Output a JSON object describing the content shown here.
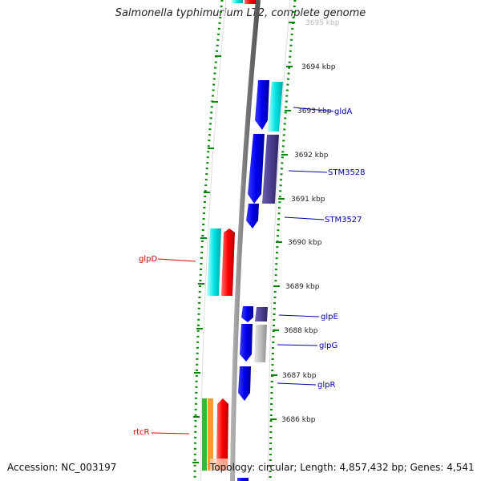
{
  "header": {
    "title": "Salmonella typhimurium LT2, complete genome"
  },
  "footer": {
    "accession": "Accession: NC_003197",
    "stats": "Topology: circular; Length: 4,857,432 bp; Genes: 4,541"
  },
  "axis": {
    "ticks": [
      {
        "label": "3695 kbp",
        "faded": true
      },
      {
        "label": "3694 kbp"
      },
      {
        "label": "3693 kbp"
      },
      {
        "label": "3692 kbp"
      },
      {
        "label": "3691 kbp"
      },
      {
        "label": "3690 kbp"
      },
      {
        "label": "3689 kbp"
      },
      {
        "label": "3688 kbp"
      },
      {
        "label": "3687 kbp"
      },
      {
        "label": "3686 kbp"
      }
    ]
  },
  "genes": [
    {
      "label": "glpD",
      "color": "#e00000"
    },
    {
      "label": "rtcR",
      "color": "#e00000"
    },
    {
      "label": "gldA",
      "color": "#0000b0"
    },
    {
      "label": "STM3528",
      "color": "#0000b0"
    },
    {
      "label": "STM3527",
      "color": "#0000b0"
    },
    {
      "label": "glpE",
      "color": "#0000b0"
    },
    {
      "label": "glpG",
      "color": "#0000b0"
    },
    {
      "label": "glpR",
      "color": "#0000b0"
    }
  ],
  "colors": {
    "forward_strand": "#ff0000",
    "reverse_strand": "#0000ee",
    "cyan_feature": "#00e5e5",
    "purple_feature": "#4b3f8f",
    "grey_feature": "#bdbdbd",
    "green_feature": "#33bb33",
    "orange_feature": "#ff9933",
    "backbone": "#8a8a8a",
    "tick_marks": "#008800"
  }
}
